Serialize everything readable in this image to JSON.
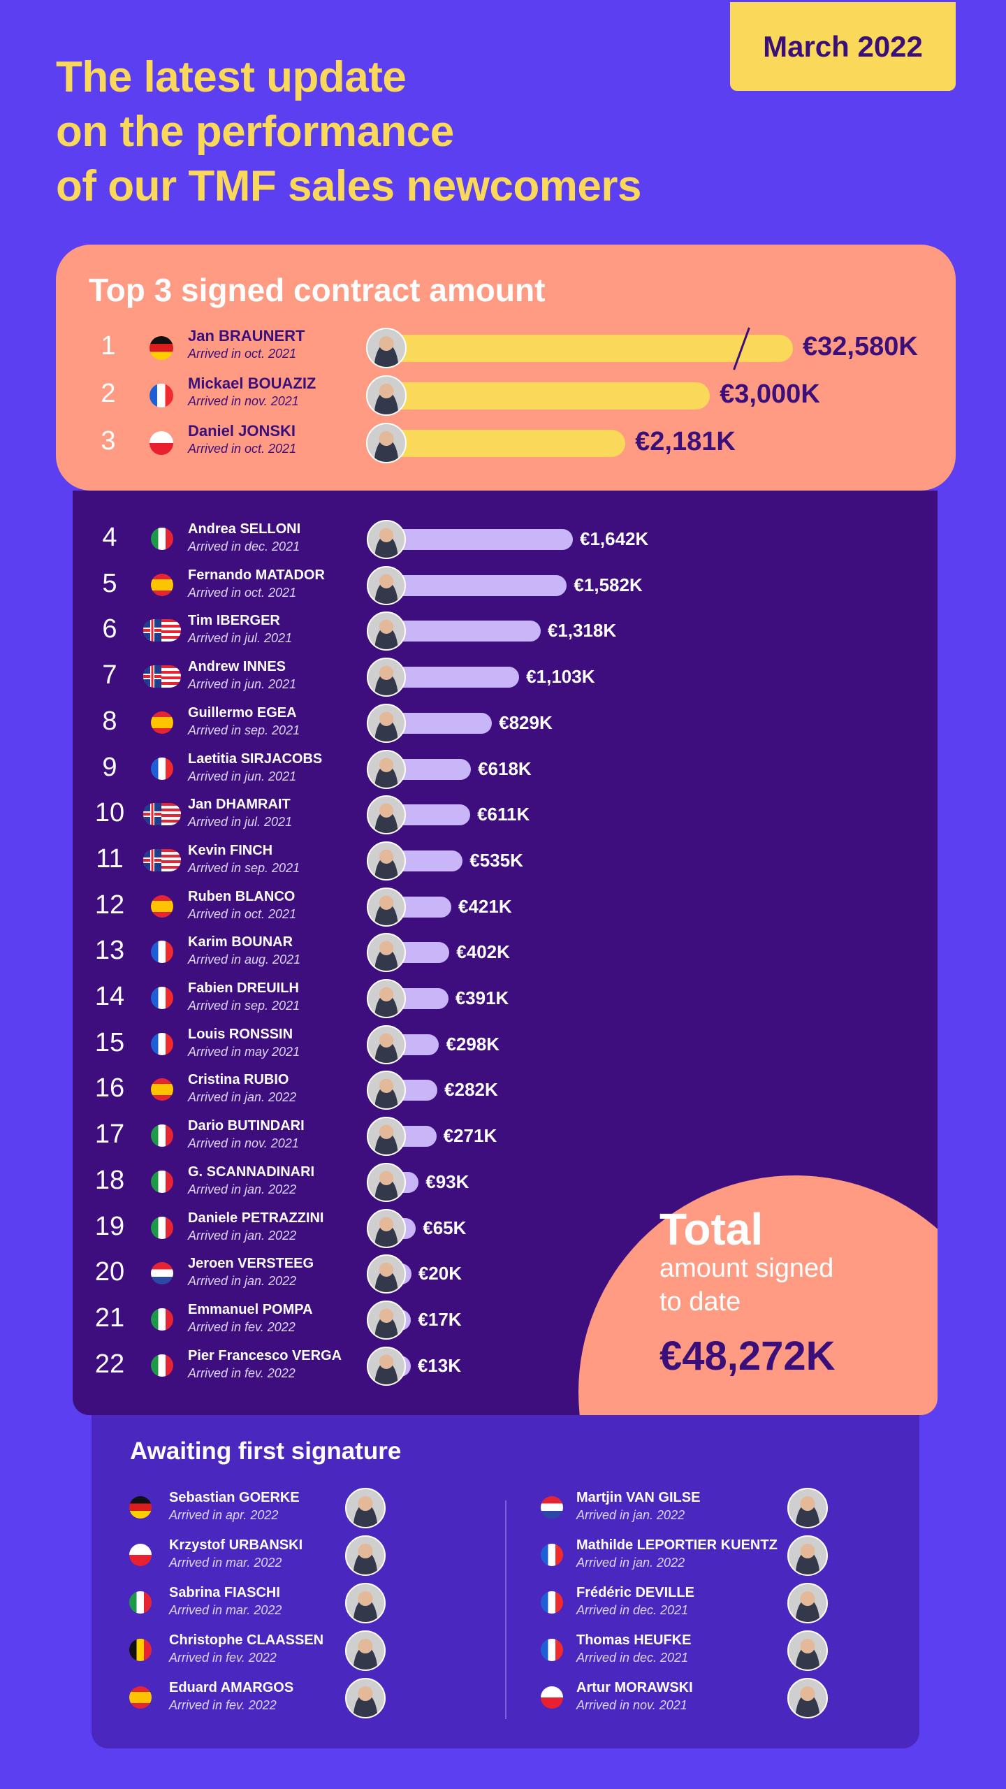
{
  "header": {
    "title_lines": [
      "The latest update",
      "on the performance",
      "of our TMF sales newcomers"
    ],
    "date_badge": "March 2022"
  },
  "colors": {
    "background": "#5b3ff0",
    "accent_yellow": "#f9d85a",
    "salmon": "#ff9b82",
    "dark_purple": "#3e0e7e",
    "bar_lilac": "#c9b6f9"
  },
  "top3": {
    "title": "Top 3 signed contract amount",
    "rows": [
      {
        "rank": "1",
        "flag": "de",
        "name": "Jan BRAUNERT",
        "arrived": "Arrived in oct. 2021",
        "value": 32580,
        "label": "€32,580K",
        "axis_break": true
      },
      {
        "rank": "2",
        "flag": "fr",
        "name": "Mickael BOUAZIZ",
        "arrived": "Arrived in nov. 2021",
        "value": 3000,
        "label": "€3,000K"
      },
      {
        "rank": "3",
        "flag": "pl",
        "name": "Daniel JONSKI",
        "arrived": "Arrived in oct. 2021",
        "value": 2181,
        "label": "€2,181K"
      }
    ]
  },
  "ranking": [
    {
      "rank": "4",
      "flag": "it",
      "name": "Andrea SELLONI",
      "arrived": "Arrived in dec. 2021",
      "value": 1642,
      "label": "€1,642K"
    },
    {
      "rank": "5",
      "flag": "es",
      "name": "Fernando MATADOR",
      "arrived": "Arrived in oct. 2021",
      "value": 1582,
      "label": "€1,582K"
    },
    {
      "rank": "6",
      "flag": "ukus",
      "name": "Tim IBERGER",
      "arrived": "Arrived in jul. 2021",
      "value": 1318,
      "label": "€1,318K"
    },
    {
      "rank": "7",
      "flag": "ukus",
      "name": "Andrew INNES",
      "arrived": "Arrived in jun. 2021",
      "value": 1103,
      "label": "€1,103K"
    },
    {
      "rank": "8",
      "flag": "es",
      "name": "Guillermo EGEA",
      "arrived": "Arrived in sep. 2021",
      "value": 829,
      "label": "€829K"
    },
    {
      "rank": "9",
      "flag": "fr",
      "name": "Laetitia SIRJACOBS",
      "arrived": "Arrived in jun. 2021",
      "value": 618,
      "label": "€618K"
    },
    {
      "rank": "10",
      "flag": "ukus",
      "name": "Jan DHAMRAIT",
      "arrived": "Arrived in jul. 2021",
      "value": 611,
      "label": "€611K"
    },
    {
      "rank": "11",
      "flag": "ukus",
      "name": "Kevin FINCH",
      "arrived": "Arrived in sep. 2021",
      "value": 535,
      "label": "€535K"
    },
    {
      "rank": "12",
      "flag": "es",
      "name": "Ruben BLANCO",
      "arrived": "Arrived in oct. 2021",
      "value": 421,
      "label": "€421K"
    },
    {
      "rank": "13",
      "flag": "fr",
      "name": "Karim BOUNAR",
      "arrived": "Arrived in aug. 2021",
      "value": 402,
      "label": "€402K"
    },
    {
      "rank": "14",
      "flag": "fr",
      "name": "Fabien DREUILH",
      "arrived": "Arrived in sep. 2021",
      "value": 391,
      "label": "€391K"
    },
    {
      "rank": "15",
      "flag": "fr",
      "name": "Louis RONSSIN",
      "arrived": "Arrived in may 2021",
      "value": 298,
      "label": "€298K"
    },
    {
      "rank": "16",
      "flag": "es",
      "name": "Cristina RUBIO",
      "arrived": "Arrived in jan. 2022",
      "value": 282,
      "label": "€282K"
    },
    {
      "rank": "17",
      "flag": "it",
      "name": "Dario BUTINDARI",
      "arrived": "Arrived in nov. 2021",
      "value": 271,
      "label": "€271K"
    },
    {
      "rank": "18",
      "flag": "it",
      "name": "G. SCANNADINARI",
      "arrived": "Arrived in jan. 2022",
      "value": 93,
      "label": "€93K"
    },
    {
      "rank": "19",
      "flag": "it",
      "name": "Daniele PETRAZZINI",
      "arrived": "Arrived in jan. 2022",
      "value": 65,
      "label": "€65K"
    },
    {
      "rank": "20",
      "flag": "nl",
      "name": "Jeroen VERSTEEG",
      "arrived": "Arrived in jan. 2022",
      "value": 20,
      "label": "€20K"
    },
    {
      "rank": "21",
      "flag": "it",
      "name": "Emmanuel POMPA",
      "arrived": "Arrived in fev. 2022",
      "value": 17,
      "label": "€17K"
    },
    {
      "rank": "22",
      "flag": "it",
      "name": "Pier Francesco VERGA",
      "arrived": "Arrived in fev. 2022",
      "value": 13,
      "label": "€13K"
    }
  ],
  "total": {
    "heading": "Total",
    "line1": "amount signed",
    "line2": "to date",
    "amount": "€48,272K"
  },
  "awaiting": {
    "title": "Awaiting first signature",
    "left": [
      {
        "flag": "de",
        "name": "Sebastian GOERKE",
        "arrived": "Arrived in apr. 2022"
      },
      {
        "flag": "pl",
        "name": "Krzystof URBANSKI",
        "arrived": "Arrived in mar. 2022"
      },
      {
        "flag": "it",
        "name": "Sabrina FIASCHI",
        "arrived": "Arrived in mar. 2022"
      },
      {
        "flag": "be",
        "name": "Christophe CLAASSEN",
        "arrived": "Arrived in fev. 2022"
      },
      {
        "flag": "es",
        "name": "Eduard AMARGOS",
        "arrived": "Arrived in fev. 2022"
      }
    ],
    "right": [
      {
        "flag": "nl",
        "name": "Martjin VAN GILSE",
        "arrived": "Arrived in jan. 2022"
      },
      {
        "flag": "fr",
        "name": "Mathilde LEPORTIER KUENTZ",
        "arrived": "Arrived in jan. 2022"
      },
      {
        "flag": "fr",
        "name": "Frédéric DEVILLE",
        "arrived": "Arrived in dec. 2021"
      },
      {
        "flag": "fr",
        "name": "Thomas HEUFKE",
        "arrived": "Arrived in dec. 2021"
      },
      {
        "flag": "pl",
        "name": "Artur MORAWSKI",
        "arrived": "Arrived in nov. 2021"
      }
    ]
  }
}
